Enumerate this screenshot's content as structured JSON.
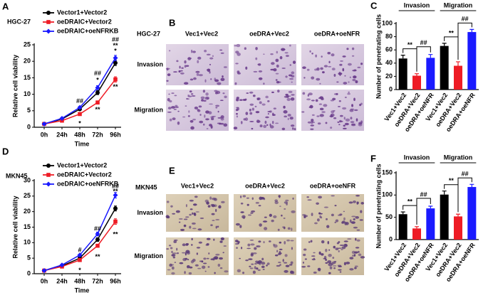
{
  "panel_letters": [
    "A",
    "B",
    "C",
    "D",
    "E",
    "F"
  ],
  "micrographs": [
    {
      "cell_line": "HGC-27",
      "columns": [
        "Vec1+Vec2",
        "oeDRA+Vec2",
        "oeDRA+oeNFR"
      ],
      "rows": [
        "Invasion",
        "Migration"
      ]
    },
    {
      "cell_line": "MKN45",
      "columns": [
        "Vec1+Vec2",
        "oeDRA+Vec2",
        "oeDRA+oeNFR"
      ],
      "rows": [
        "Invasion",
        "Migration"
      ]
    }
  ],
  "chart_data": [
    {
      "type": "line",
      "title": "HGC-27",
      "x_label": "Time",
      "y_label": "Relative cell viability",
      "categories": [
        "0h",
        "24h",
        "48h",
        "72h",
        "96h"
      ],
      "ylim": [
        0,
        25
      ],
      "yticks": [
        0,
        5,
        10,
        15,
        20,
        25
      ],
      "series": [
        {
          "name": "Vector1+Vector2",
          "color": "#000000",
          "marker": "circle",
          "values": [
            1,
            2.5,
            5.5,
            10.5,
            19.5
          ],
          "errors": [
            0.2,
            0.2,
            0.3,
            0.6,
            0.8
          ]
        },
        {
          "name": "oeDRAIC+Vector2",
          "color": "#ee1c25",
          "marker": "square",
          "values": [
            1,
            2,
            4,
            7.5,
            14.5
          ],
          "errors": [
            0.2,
            0.2,
            0.3,
            0.5,
            0.8
          ]
        },
        {
          "name": "oeDRAIC+oeNFRKB",
          "color": "#1a1aff",
          "marker": "diamond",
          "values": [
            1,
            2.7,
            6,
            12,
            21
          ],
          "errors": [
            0.2,
            0.2,
            0.3,
            0.6,
            0.8
          ]
        }
      ],
      "annotations": [
        "##",
        "*",
        "##",
        "*",
        "**",
        "##",
        "**",
        "*",
        "**"
      ]
    },
    {
      "type": "bar",
      "y_label": "Number of penetrating cells",
      "groups": [
        "Invasion",
        "Migration"
      ],
      "categories": [
        "Vec1+Vec2",
        "oeDRA+Vec2",
        "oeDRA+oeNFR",
        "Vec1+Vec2",
        "oeDRA+Vec2",
        "oeDRA+oeNFR"
      ],
      "colors": [
        "#000000",
        "#ee1c25",
        "#1a1aff",
        "#000000",
        "#ee1c25",
        "#1a1aff"
      ],
      "values": [
        47,
        21,
        48,
        66,
        36,
        87
      ],
      "errors": [
        5,
        3,
        5,
        4,
        6,
        4
      ],
      "ylim": [
        0,
        100
      ],
      "yticks": [
        0,
        20,
        40,
        60,
        80,
        100
      ],
      "comparisons": [
        "**",
        "##",
        "**",
        "##"
      ]
    },
    {
      "type": "line",
      "title": "MKN45",
      "x_label": "Time",
      "y_label": "Relative cell viability",
      "categories": [
        "0h",
        "24h",
        "48h",
        "72h",
        "96h"
      ],
      "ylim": [
        0,
        30
      ],
      "yticks": [
        0,
        5,
        10,
        15,
        20,
        25,
        30
      ],
      "series": [
        {
          "name": "Vector1+Vector2",
          "color": "#000000",
          "marker": "circle",
          "values": [
            1,
            2.5,
            5,
            11,
            21
          ],
          "errors": [
            0.2,
            0.2,
            0.3,
            0.6,
            0.8
          ]
        },
        {
          "name": "oeDRAIC+Vector2",
          "color": "#ee1c25",
          "marker": "square",
          "values": [
            1,
            2.3,
            4.4,
            9,
            16.8
          ],
          "errors": [
            0.2,
            0.2,
            0.3,
            0.5,
            0.9
          ]
        },
        {
          "name": "oeDRAIC+oeNFRKB",
          "color": "#1a1aff",
          "marker": "diamond",
          "values": [
            1,
            2.8,
            6,
            12.8,
            25.3
          ],
          "errors": [
            0.2,
            0.2,
            0.3,
            0.6,
            0.9
          ]
        }
      ],
      "annotations": [
        "#",
        "*",
        "##",
        "**",
        "##",
        "**",
        "**"
      ]
    },
    {
      "type": "bar",
      "y_label": "Number of penetrating cells",
      "groups": [
        "Invasion",
        "Migration"
      ],
      "categories": [
        "Vec1+Vec2",
        "oeDRA+Vec2",
        "oeDRA+oeNFR",
        "Vec1+Vec2",
        "oeDRA+Vec2",
        "oeDRA+oeNFR"
      ],
      "colors": [
        "#000000",
        "#ee1c25",
        "#1a1aff",
        "#000000",
        "#ee1c25",
        "#1a1aff"
      ],
      "values": [
        57,
        25,
        70,
        101,
        52,
        118
      ],
      "errors": [
        5,
        4,
        5,
        8,
        5,
        6
      ],
      "ylim": [
        0,
        150
      ],
      "yticks": [
        0,
        50,
        100,
        150
      ],
      "comparisons": [
        "**",
        "##",
        "**",
        "##"
      ]
    }
  ]
}
